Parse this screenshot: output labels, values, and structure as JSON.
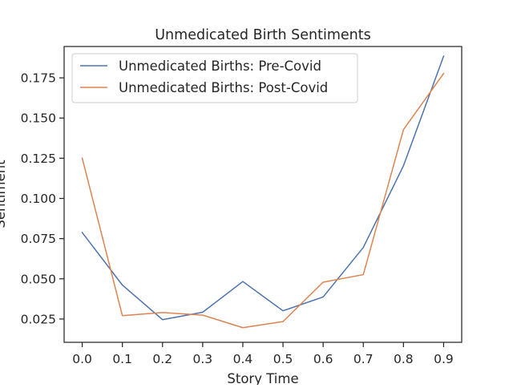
{
  "chart_data": {
    "type": "line",
    "title": "Unmedicated Birth Sentiments",
    "xlabel": "Story Time",
    "ylabel": "Sentiment",
    "x": [
      0.0,
      0.1,
      0.2,
      0.3,
      0.4,
      0.5,
      0.6,
      0.7,
      0.8,
      0.9
    ],
    "x_tick_labels": [
      "0.0",
      "0.1",
      "0.2",
      "0.3",
      "0.4",
      "0.5",
      "0.6",
      "0.7",
      "0.8",
      "0.9"
    ],
    "y_ticks": [
      0.025,
      0.05,
      0.075,
      0.1,
      0.125,
      0.15,
      0.175
    ],
    "y_tick_labels": [
      "0.025",
      "0.050",
      "0.075",
      "0.100",
      "0.125",
      "0.150",
      "0.175"
    ],
    "xlim": [
      -0.045,
      0.945
    ],
    "ylim": [
      0.0105,
      0.1945
    ],
    "grid": false,
    "legend_position": "upper-left",
    "series": [
      {
        "name": "Unmedicated Births: Pre-Covid",
        "color": "#4c72b0",
        "values": [
          0.0788,
          0.0461,
          0.0246,
          0.0292,
          0.0483,
          0.0301,
          0.0387,
          0.0695,
          0.1203,
          0.1885
        ]
      },
      {
        "name": "Unmedicated Births: Post-Covid",
        "color": "#dd8452",
        "values": [
          0.1251,
          0.0271,
          0.029,
          0.0274,
          0.0196,
          0.0234,
          0.0479,
          0.0526,
          0.1428,
          0.1777
        ]
      }
    ]
  }
}
